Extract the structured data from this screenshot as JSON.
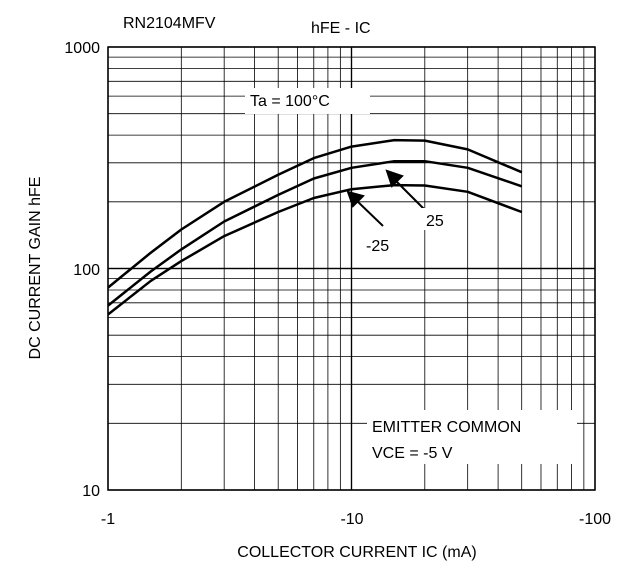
{
  "chart_data": {
    "type": "line",
    "part_number": "RN2104MFV",
    "title": "hFE - IC",
    "xlabel": "COLLECTOR CURRENT   IC (mA)",
    "ylabel": "DC CURRENT GAIN hFE",
    "x_scale": "log",
    "y_scale": "log",
    "xlim": [
      -1,
      -100
    ],
    "ylim": [
      10,
      1000
    ],
    "x_ticks": [
      -1,
      -10,
      -100
    ],
    "x_tick_labels": [
      "-1",
      "-10",
      "-100"
    ],
    "y_ticks": [
      10,
      100,
      1000
    ],
    "y_tick_labels": [
      "10",
      "100",
      "1000"
    ],
    "grid": true,
    "series": [
      {
        "name": "Ta = 100°C",
        "x": [
          -1,
          -1.5,
          -2,
          -3,
          -5,
          -7,
          -10,
          -15,
          -20,
          -30,
          -50
        ],
        "y": [
          82,
          118,
          150,
          200,
          265,
          315,
          355,
          380,
          378,
          345,
          272
        ]
      },
      {
        "name": "25",
        "x": [
          -1,
          -1.5,
          -2,
          -3,
          -5,
          -7,
          -10,
          -15,
          -20,
          -30,
          -50
        ],
        "y": [
          68,
          97,
          122,
          163,
          215,
          255,
          285,
          305,
          305,
          285,
          235
        ]
      },
      {
        "name": "-25",
        "x": [
          -1,
          -1.5,
          -2,
          -3,
          -5,
          -7,
          -10,
          -15,
          -20,
          -30,
          -50
        ],
        "y": [
          62,
          88,
          108,
          140,
          180,
          208,
          228,
          238,
          237,
          222,
          180
        ]
      }
    ],
    "annotations": [
      {
        "text": "Ta = 100°C"
      },
      {
        "text": "25"
      },
      {
        "text": "-25"
      },
      {
        "text": "EMITTER COMMON"
      },
      {
        "text": "VCE = -5 V"
      }
    ]
  }
}
